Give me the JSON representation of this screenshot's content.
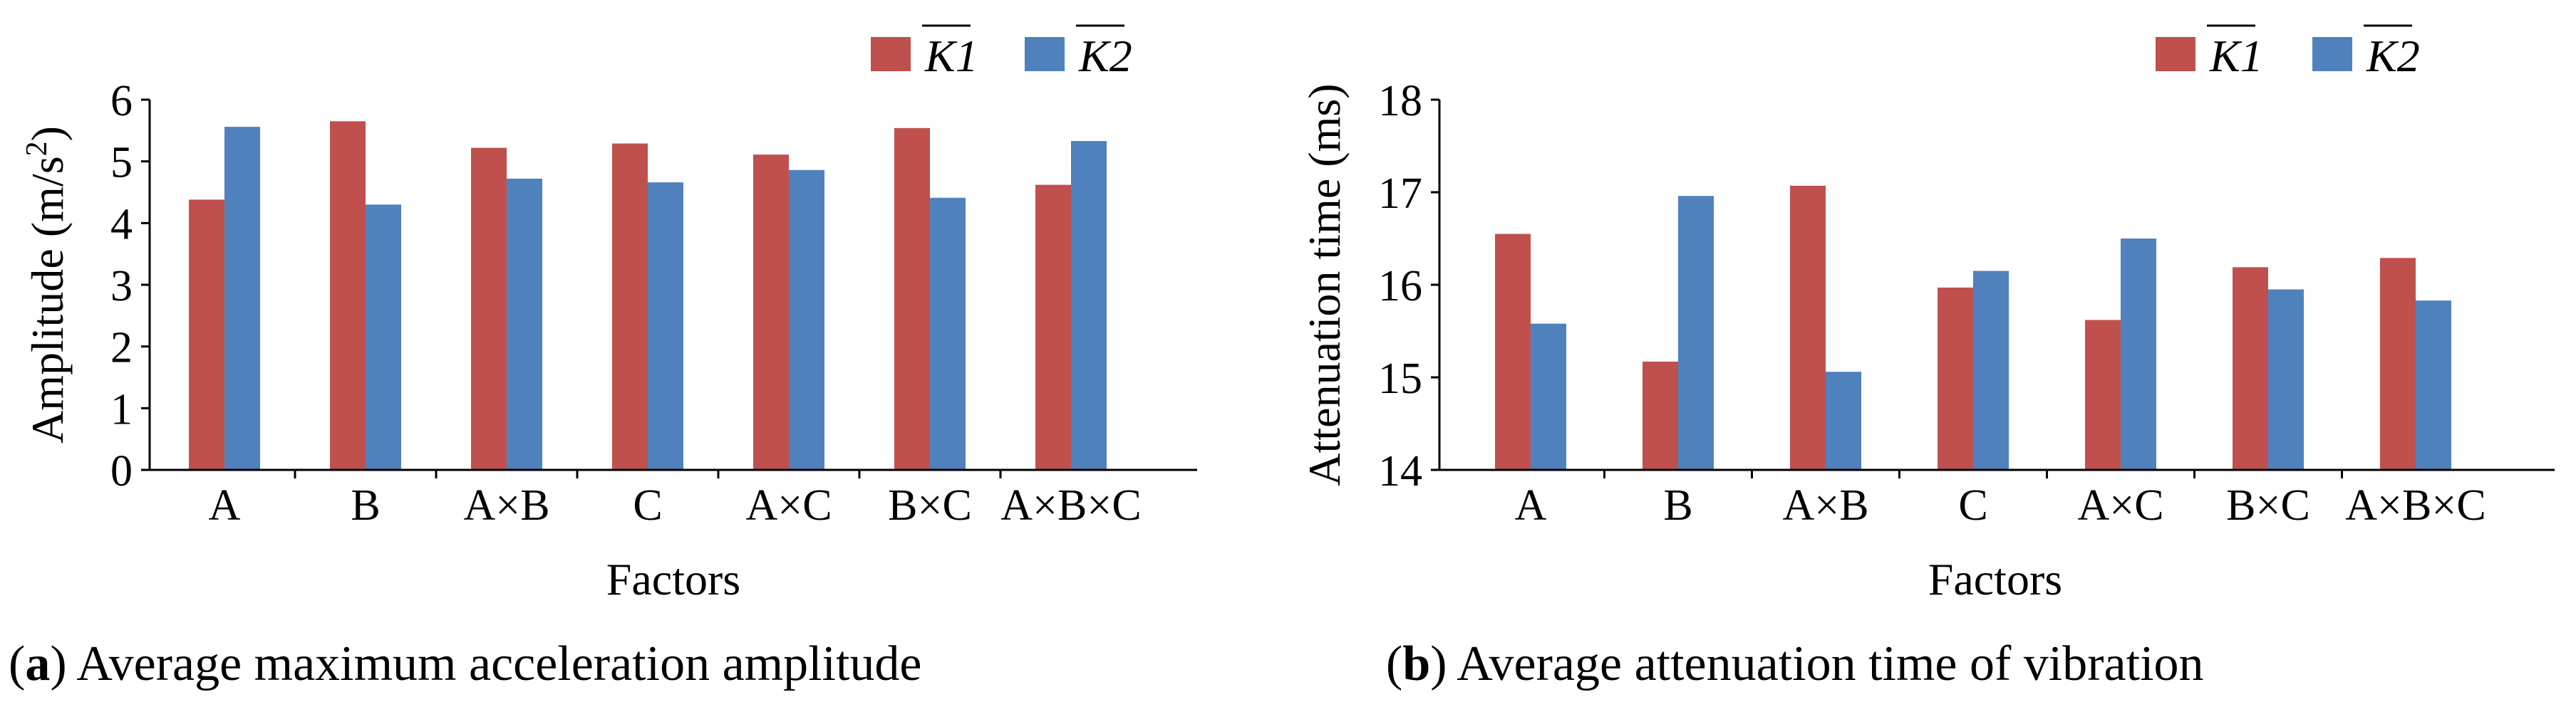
{
  "colors": {
    "k1": "#c0504d",
    "k2": "#4f81bd",
    "axis": "#000000"
  },
  "chart_data": [
    {
      "type": "bar",
      "caption_letter": "a",
      "caption_text": " Average maximum acceleration amplitude",
      "xlabel": "Factors",
      "ylabel": "Amplitude (m/s",
      "ylabel_sup": "2",
      "ylabel_end": ")",
      "ylim": [
        0,
        6
      ],
      "yticks": [
        0,
        1,
        2,
        3,
        4,
        5,
        6
      ],
      "categories": [
        "A",
        "B",
        "A×B",
        "C",
        "A×C",
        "B×C",
        "A×B×C"
      ],
      "series": [
        {
          "name": "K1",
          "values": [
            4.38,
            5.65,
            5.22,
            5.29,
            5.11,
            5.54,
            4.62
          ]
        },
        {
          "name": "K2",
          "values": [
            5.56,
            4.3,
            4.72,
            4.66,
            4.86,
            4.41,
            5.33
          ]
        }
      ]
    },
    {
      "type": "bar",
      "caption_letter": "b",
      "caption_text": " Average attenuation time of vibration",
      "xlabel": "Factors",
      "ylabel": "Attenuation time (ms)",
      "ylim": [
        14,
        18
      ],
      "yticks": [
        14,
        15,
        16,
        17,
        18
      ],
      "categories": [
        "A",
        "B",
        "A×B",
        "C",
        "A×C",
        "B×C",
        "A×B×C"
      ],
      "series": [
        {
          "name": "K1",
          "values": [
            16.55,
            15.17,
            17.07,
            15.97,
            15.62,
            16.19,
            16.29
          ]
        },
        {
          "name": "K2",
          "values": [
            15.58,
            16.96,
            15.06,
            16.15,
            16.5,
            15.95,
            15.83
          ]
        }
      ]
    }
  ]
}
